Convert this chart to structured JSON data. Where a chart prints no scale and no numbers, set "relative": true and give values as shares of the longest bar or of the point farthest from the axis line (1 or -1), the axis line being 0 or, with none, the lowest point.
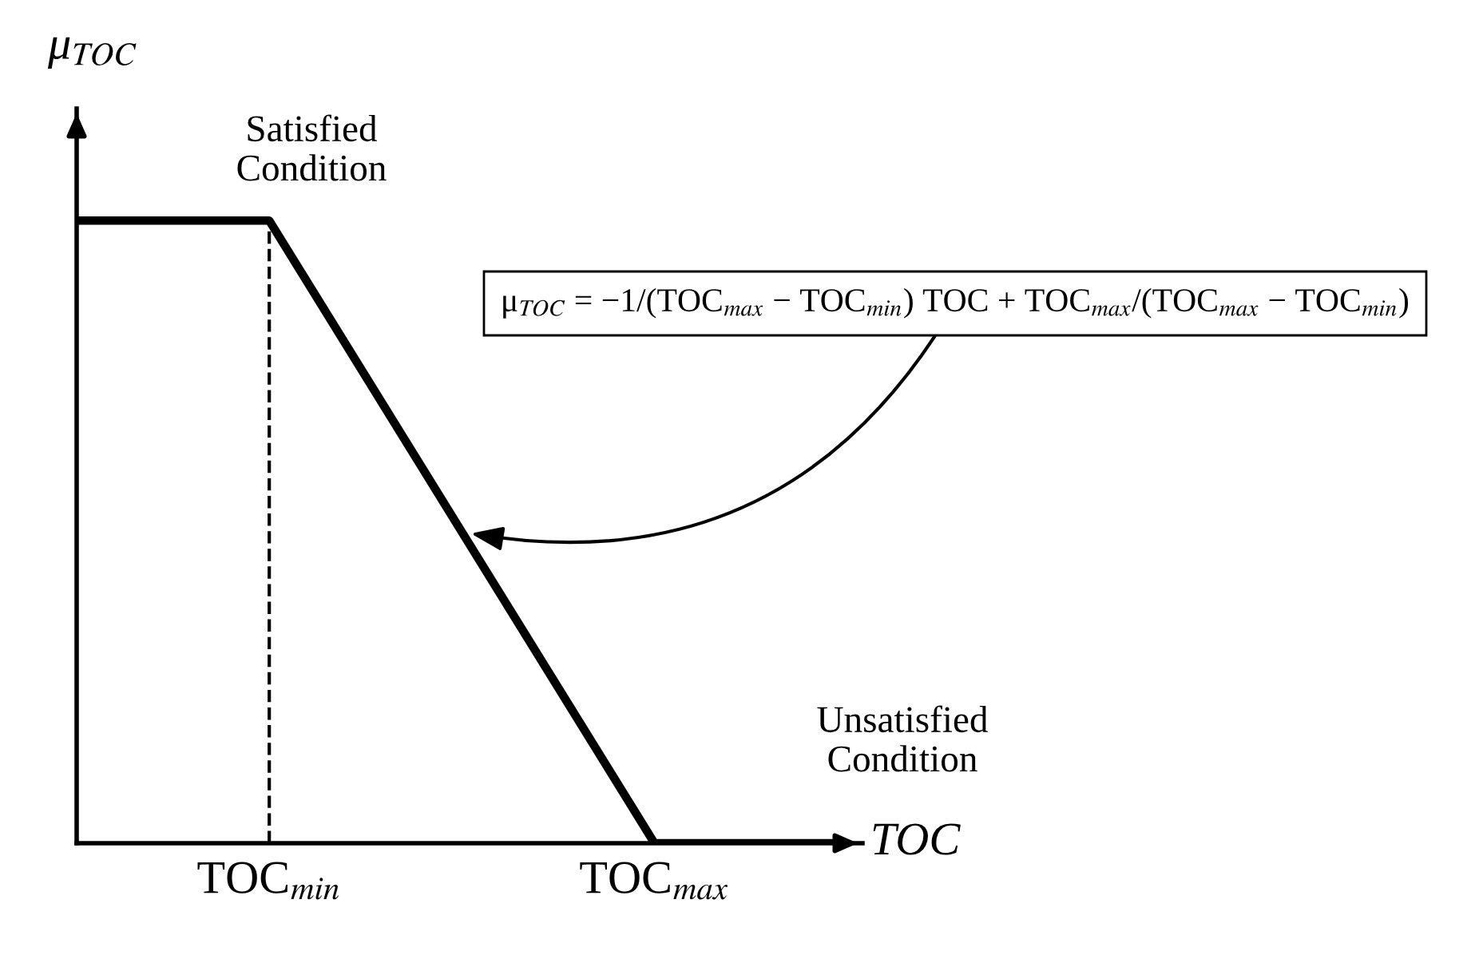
{
  "chart_data": {
    "type": "line",
    "relative": true,
    "xlabel": "TOC",
    "ylabel": "μ$_{TOC}$",
    "categories": [
      null,
      "TOC$_{min}$",
      null,
      "TOC$_{max}$",
      null
    ],
    "series": [
      {
        "color": "#000000",
        "values": [
          1,
          1,
          0.5,
          0,
          0
        ]
      }
    ],
    "ref_lines": [
      {
        "axis": "x",
        "value": "TOC$_{min}$",
        "label": null,
        "color": "#000000",
        "line_style": "dashed"
      }
    ],
    "annotations": [
      "Satisfied\nCondition",
      "Unsatisfied\nCondition",
      "μ$_{TOC}$ = −1/(TOC$_{max}$ − TOC$_{min}$) TOC + TOC$_{max}$/(TOC$_{max}$ − TOC$_{min}$)"
    ],
    "grid": false,
    "marker": "none",
    "line_style": "solid"
  }
}
